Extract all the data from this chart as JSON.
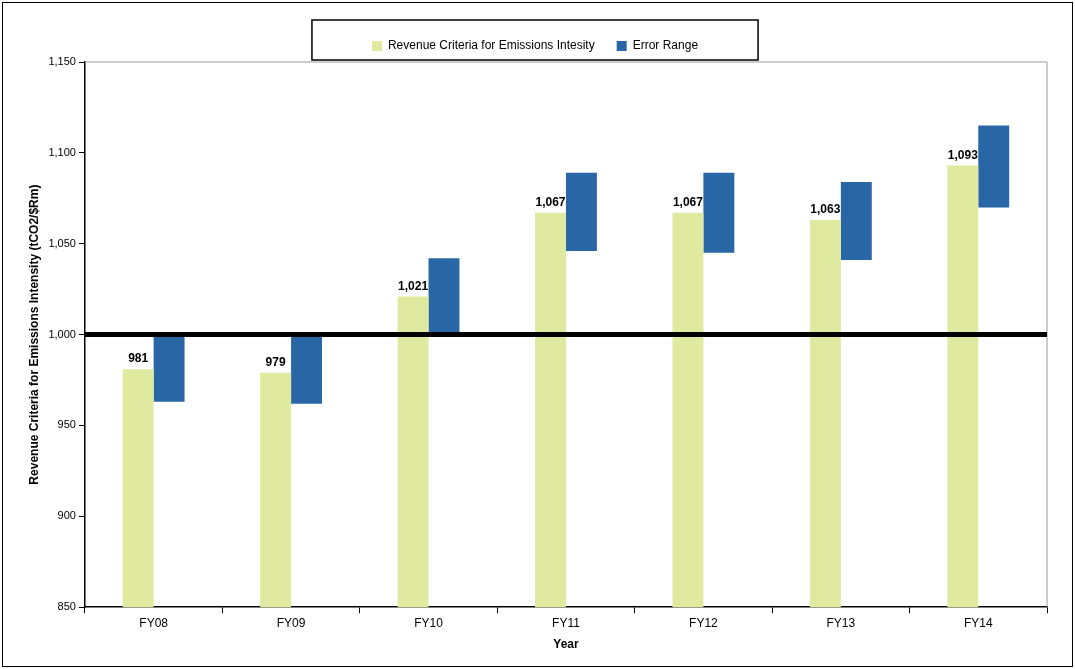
{
  "chart_data": {
    "type": "bar",
    "xlabel": "Year",
    "ylabel": "Revenue Criteria for Emissions Intensity (tCO2/$Rm)",
    "categories": [
      "FY08",
      "FY09",
      "FY10",
      "FY11",
      "FY12",
      "FY13",
      "FY14"
    ],
    "series": [
      {
        "name": "Revenue Criteria for Emissions Intesity",
        "color": "#dfe99f",
        "values": [
          981,
          979,
          1021,
          1067,
          1067,
          1063,
          1093
        ],
        "value_labels": [
          "981",
          "979",
          "1,021",
          "1,067",
          "1,067",
          "1,063",
          "1,093"
        ]
      },
      {
        "name": "Error Range",
        "color": "#2966a6",
        "base": [
          963,
          962,
          1000,
          1046,
          1045,
          1041,
          1070
        ],
        "values": [
          37,
          38,
          42,
          43,
          44,
          43,
          45
        ]
      }
    ],
    "ylim": [
      850,
      1150
    ],
    "yticks": [
      {
        "value": 850,
        "label": "850"
      },
      {
        "value": 900,
        "label": "900"
      },
      {
        "value": 950,
        "label": "950"
      },
      {
        "value": 1000,
        "label": "1,000"
      },
      {
        "value": 1050,
        "label": "1,050"
      },
      {
        "value": 1100,
        "label": "1,100"
      },
      {
        "value": 1150,
        "label": "1,150"
      }
    ],
    "ref_lines": [
      {
        "axis": "y",
        "value": 1000,
        "color": "#000000"
      }
    ],
    "legend": "top",
    "grid": false
  }
}
